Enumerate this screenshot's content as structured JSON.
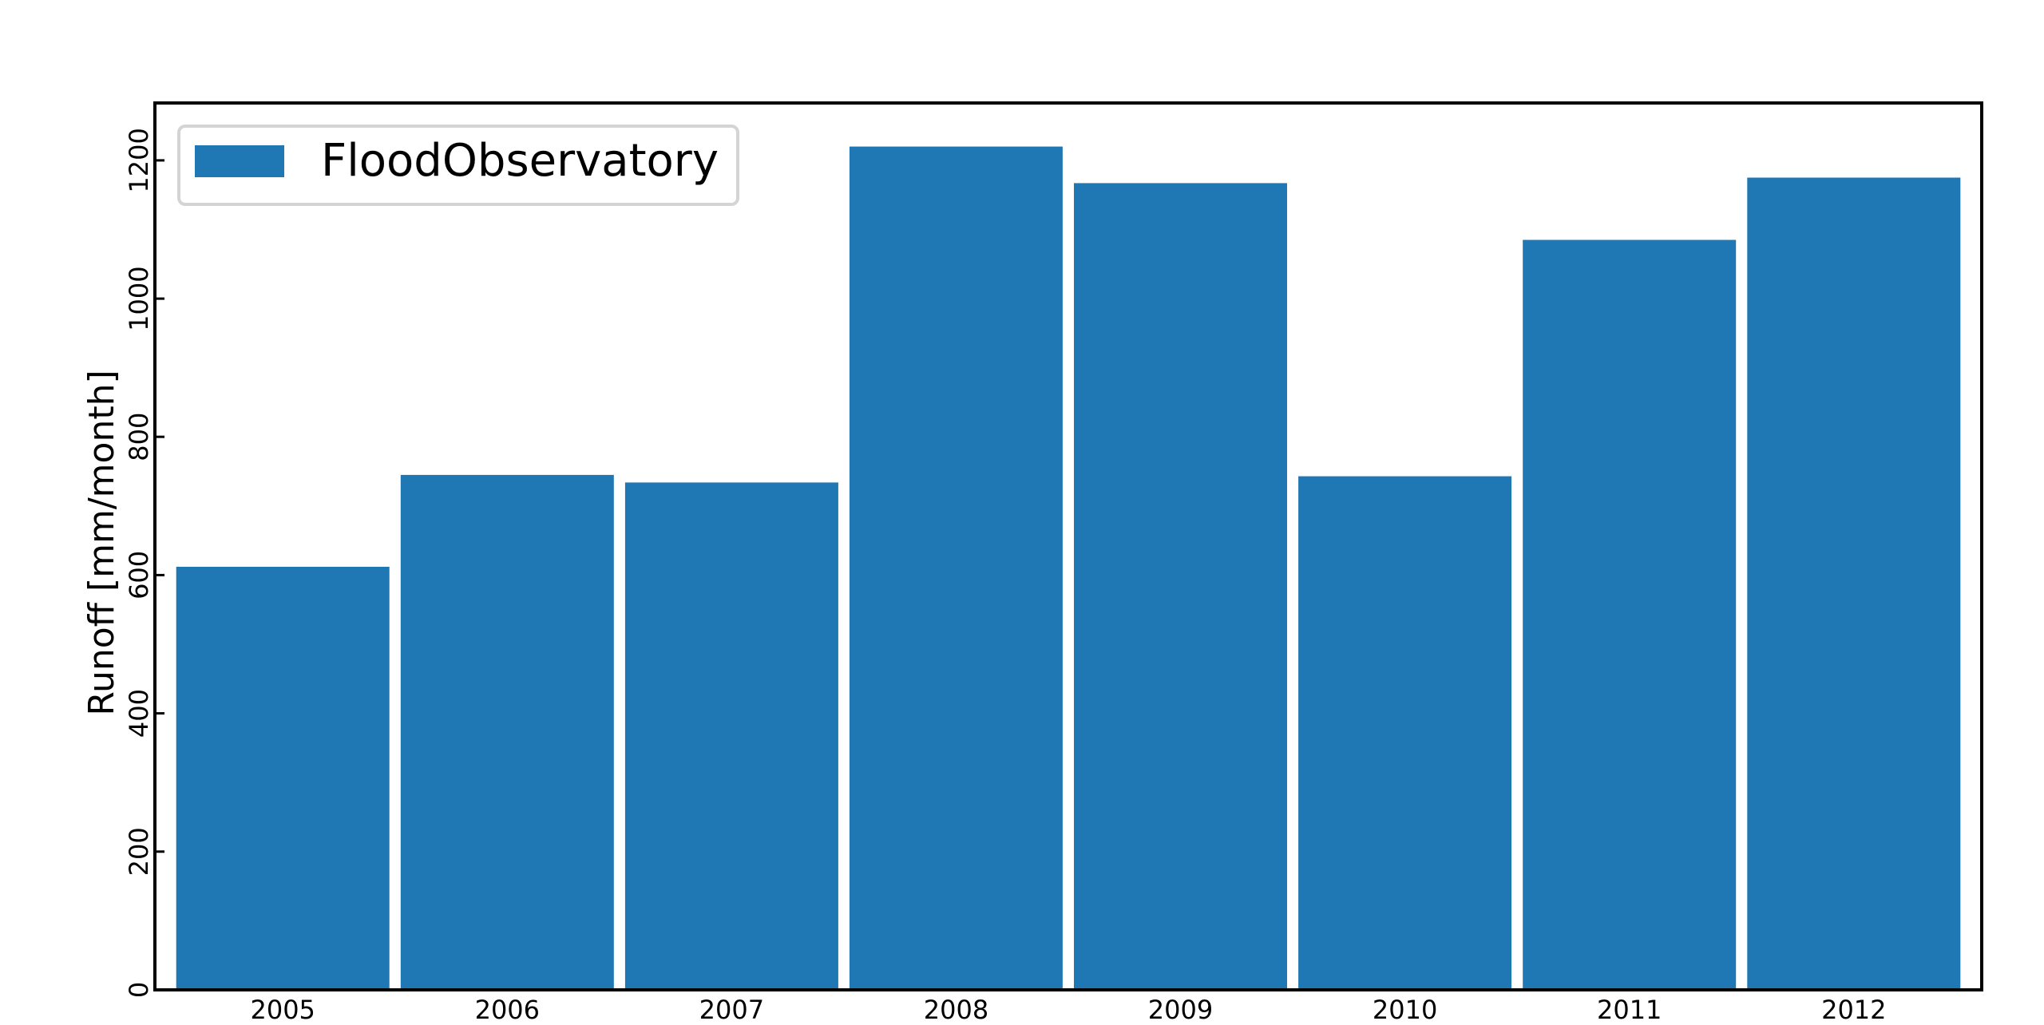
{
  "chart_data": {
    "type": "bar",
    "title": "",
    "xlabel": "",
    "ylabel": "Runoff [mm/month]",
    "categories": [
      "2005",
      "2006",
      "2007",
      "2008",
      "2009",
      "2010",
      "2011",
      "2012"
    ],
    "series": [
      {
        "name": "FloodObservatory",
        "values": [
          612,
          745,
          734,
          1220,
          1167,
          743,
          1085,
          1175
        ],
        "color": "#1f77b4"
      }
    ],
    "ylim": [
      0,
      1283
    ],
    "yticks": [
      0,
      200,
      400,
      600,
      800,
      1000,
      1200
    ],
    "grid": false,
    "legend_position": "top-left"
  }
}
